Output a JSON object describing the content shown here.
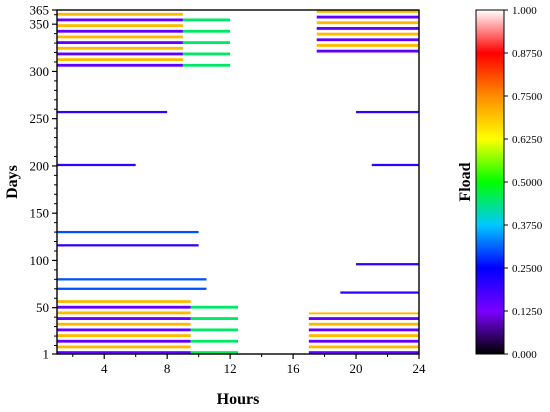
{
  "chart_data": {
    "type": "heatmap",
    "title": "",
    "xlabel": "Hours",
    "ylabel": "Days",
    "xlim": [
      1,
      24
    ],
    "ylim": [
      1,
      365
    ],
    "x_ticks": [
      "4",
      "8",
      "12",
      "16",
      "20",
      "24"
    ],
    "y_ticks": [
      "1",
      "50",
      "100",
      "150",
      "200",
      "250",
      "300",
      "350",
      "365"
    ],
    "colorbar": {
      "label": "Fload",
      "range": [
        0,
        1
      ],
      "ticks": [
        "0.000",
        "0.1250",
        "0.2500",
        "0.3750",
        "0.5000",
        "0.6250",
        "0.7500",
        "0.8750",
        "1.000"
      ],
      "colors": [
        "#000000",
        "#7a00ff",
        "#0000ff",
        "#00c8ff",
        "#00ff00",
        "#ffff00",
        "#ff8c00",
        "#ff0000",
        "#ffffff"
      ]
    },
    "background_value": 1.0,
    "low_value_regions": [
      {
        "days": [
          1,
          60
        ],
        "hours": [
          1,
          9.5
        ],
        "value": 0.15
      },
      {
        "days": [
          1,
          60
        ],
        "hours": [
          9.5,
          12.5
        ],
        "value": 0.45
      },
      {
        "days": [
          1,
          45
        ],
        "hours": [
          17,
          24
        ],
        "value": 0.15
      },
      {
        "days": [
          305,
          365
        ],
        "hours": [
          1,
          9
        ],
        "value": 0.15
      },
      {
        "days": [
          305,
          365
        ],
        "hours": [
          9,
          12
        ],
        "value": 0.45
      },
      {
        "days": [
          320,
          365
        ],
        "hours": [
          17.5,
          24
        ],
        "value": 0.15
      }
    ],
    "low_value_rows": [
      {
        "day": 257,
        "hours": [
          1,
          8
        ],
        "value": 0.2
      },
      {
        "day": 257,
        "hours": [
          20,
          24
        ],
        "value": 0.2
      },
      {
        "day": 201,
        "hours": [
          1,
          6
        ],
        "value": 0.2
      },
      {
        "day": 201,
        "hours": [
          21,
          24
        ],
        "value": 0.2
      },
      {
        "day": 130,
        "hours": [
          1,
          10
        ],
        "value": 0.3
      },
      {
        "day": 116,
        "hours": [
          1,
          10
        ],
        "value": 0.2
      },
      {
        "day": 96,
        "hours": [
          20,
          24
        ],
        "value": 0.2
      },
      {
        "day": 80,
        "hours": [
          1,
          10.5
        ],
        "value": 0.3
      },
      {
        "day": 70,
        "hours": [
          1,
          10.5
        ],
        "value": 0.3
      },
      {
        "day": 66,
        "hours": [
          19,
          24
        ],
        "value": 0.2
      }
    ]
  }
}
